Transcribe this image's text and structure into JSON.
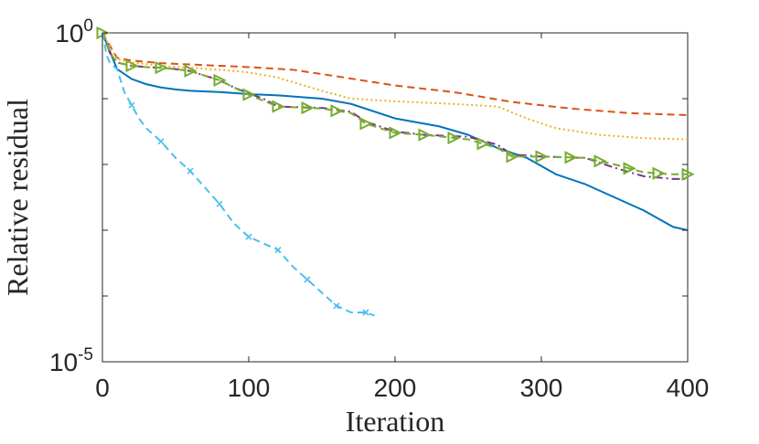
{
  "chart_data": {
    "type": "line",
    "title": "",
    "xlabel": "Iteration",
    "ylabel": "Relative residual",
    "xlim": [
      0,
      400
    ],
    "ylim_log10": [
      -5,
      0
    ],
    "x_ticks": [
      0,
      100,
      200,
      300,
      400
    ],
    "x_tick_labels": [
      "0",
      "100",
      "200",
      "300",
      "400"
    ],
    "y_ticks_log10": [
      0,
      -5
    ],
    "y_tick_label_bases": [
      "10",
      "10"
    ],
    "y_tick_label_exponents": [
      "0",
      "-5"
    ],
    "y_minor_ticks_log10": [
      -1,
      -2,
      -3,
      -4
    ],
    "grid": false,
    "legend": "none",
    "series": [
      {
        "name": "solid-blue",
        "color": "#0072BD",
        "dash": "solid",
        "marker": "none",
        "x": [
          0,
          10,
          20,
          30,
          40,
          50,
          60,
          80,
          100,
          120,
          150,
          170,
          200,
          230,
          250,
          270,
          290,
          310,
          330,
          350,
          370,
          390,
          400
        ],
        "log10y": [
          0,
          -0.55,
          -0.7,
          -0.78,
          -0.83,
          -0.86,
          -0.88,
          -0.9,
          -0.93,
          -0.95,
          -1.0,
          -1.08,
          -1.3,
          -1.42,
          -1.55,
          -1.75,
          -1.9,
          -2.15,
          -2.3,
          -2.5,
          -2.7,
          -2.95,
          -3.0
        ]
      },
      {
        "name": "dashed-orange",
        "color": "#D95319",
        "dash": "dashed",
        "marker": "none",
        "x": [
          0,
          10,
          20,
          40,
          60,
          80,
          100,
          130,
          160,
          200,
          240,
          280,
          320,
          360,
          400
        ],
        "log10y": [
          0,
          -0.38,
          -0.42,
          -0.46,
          -0.48,
          -0.5,
          -0.52,
          -0.56,
          -0.66,
          -0.8,
          -0.9,
          -1.05,
          -1.15,
          -1.22,
          -1.25
        ]
      },
      {
        "name": "dotted-yellow",
        "color": "#EDB120",
        "dash": "dotted",
        "marker": "none",
        "x": [
          0,
          10,
          20,
          40,
          60,
          80,
          100,
          120,
          150,
          170,
          200,
          240,
          270,
          290,
          310,
          340,
          370,
          400
        ],
        "log10y": [
          0,
          -0.4,
          -0.45,
          -0.5,
          -0.53,
          -0.56,
          -0.6,
          -0.68,
          -0.88,
          -1.0,
          -1.04,
          -1.08,
          -1.12,
          -1.3,
          -1.45,
          -1.55,
          -1.6,
          -1.62
        ]
      },
      {
        "name": "dashdot-purple",
        "color": "#7E2F8E",
        "dash": "dashdot",
        "marker": "none",
        "x": [
          0,
          5,
          10,
          20,
          30,
          40,
          50,
          60,
          80,
          90,
          100,
          110,
          120,
          150,
          170,
          180,
          200,
          220,
          250,
          270,
          280,
          300,
          330,
          350,
          370,
          390,
          400
        ],
        "log10y": [
          0,
          -0.3,
          -0.45,
          -0.5,
          -0.52,
          -0.53,
          -0.55,
          -0.58,
          -0.72,
          -0.83,
          -0.92,
          -1.0,
          -1.12,
          -1.14,
          -1.2,
          -1.35,
          -1.5,
          -1.55,
          -1.58,
          -1.7,
          -1.85,
          -1.88,
          -1.9,
          -2.05,
          -2.18,
          -2.22,
          -2.22
        ]
      },
      {
        "name": "dashed-green-triangles",
        "color": "#77AC30",
        "dash": "dashed",
        "marker": "triangle-right",
        "x": [
          0,
          5,
          10,
          20,
          30,
          40,
          50,
          60,
          80,
          90,
          100,
          110,
          120,
          150,
          170,
          180,
          200,
          220,
          250,
          270,
          280,
          300,
          330,
          350,
          370,
          390,
          400
        ],
        "log10y": [
          0,
          -0.3,
          -0.45,
          -0.5,
          -0.52,
          -0.53,
          -0.55,
          -0.58,
          -0.72,
          -0.83,
          -0.94,
          -1.03,
          -1.12,
          -1.15,
          -1.22,
          -1.38,
          -1.52,
          -1.55,
          -1.62,
          -1.75,
          -1.88,
          -1.88,
          -1.9,
          -2.0,
          -2.12,
          -2.15,
          -2.15
        ],
        "marker_x": [
          0,
          20,
          40,
          60,
          80,
          100,
          120,
          140,
          160,
          180,
          200,
          220,
          240,
          260,
          280,
          300,
          320,
          340,
          360,
          380,
          400
        ]
      },
      {
        "name": "dashed-cyan-crosses",
        "color": "#4DBEEE",
        "dash": "dashed",
        "marker": "x",
        "x": [
          0,
          3,
          5,
          10,
          15,
          20,
          25,
          30,
          35,
          40,
          50,
          60,
          70,
          80,
          90,
          100,
          110,
          120,
          130,
          140,
          150,
          160,
          170,
          180,
          186
        ],
        "log10y": [
          0,
          -0.35,
          -0.45,
          -0.55,
          -0.9,
          -1.1,
          -1.3,
          -1.45,
          -1.55,
          -1.65,
          -1.9,
          -2.1,
          -2.35,
          -2.6,
          -2.9,
          -3.1,
          -3.2,
          -3.3,
          -3.55,
          -3.75,
          -3.95,
          -4.15,
          -4.25,
          -4.25,
          -4.3
        ],
        "marker_x": [
          20,
          40,
          60,
          80,
          100,
          120,
          140,
          160,
          180
        ]
      }
    ]
  }
}
